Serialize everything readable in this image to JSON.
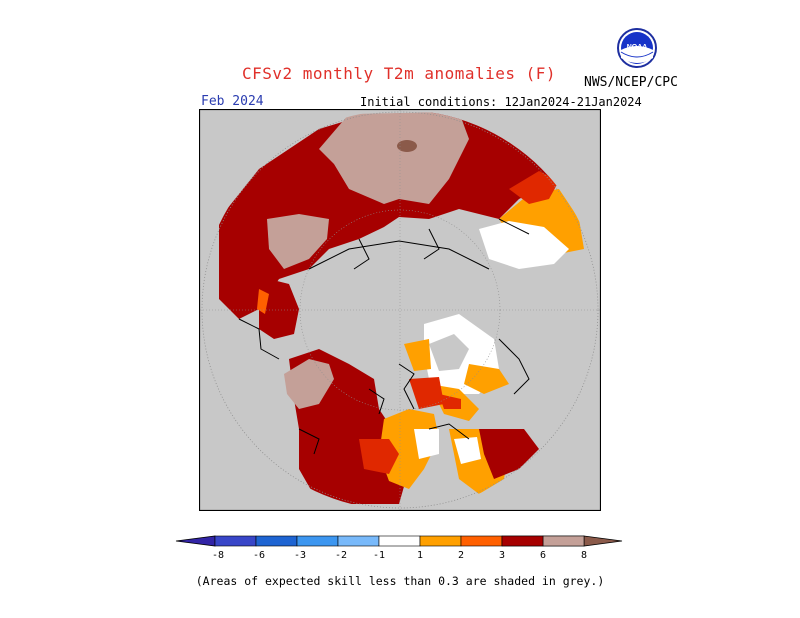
{
  "header": {
    "title": "CFSv2 monthly T2m anomalies (F)",
    "organization": "NWS/NCEP/CPC",
    "logo_text": "NOAA",
    "month": "Feb 2024",
    "initial_conditions": "Initial conditions: 12Jan2024-21Jan2024"
  },
  "colors": {
    "skill_grey": "#c8c8c8",
    "cold": [
      "#3224a6",
      "#3846c8",
      "#1e64d2",
      "#3c96f0",
      "#78b9fa"
    ],
    "neutral": "#ffffff",
    "warm": [
      "#ffa000",
      "#ff6000",
      "#e02800",
      "#a60000",
      "#c4a098",
      "#8b5a4a"
    ]
  },
  "legend": {
    "ticks": [
      "-8",
      "-6",
      "-3",
      "-2",
      "-1",
      "1",
      "2",
      "3",
      "6",
      "8"
    ],
    "note": "(Areas of expected skill less than 0.3 are shaded in grey.)"
  }
}
